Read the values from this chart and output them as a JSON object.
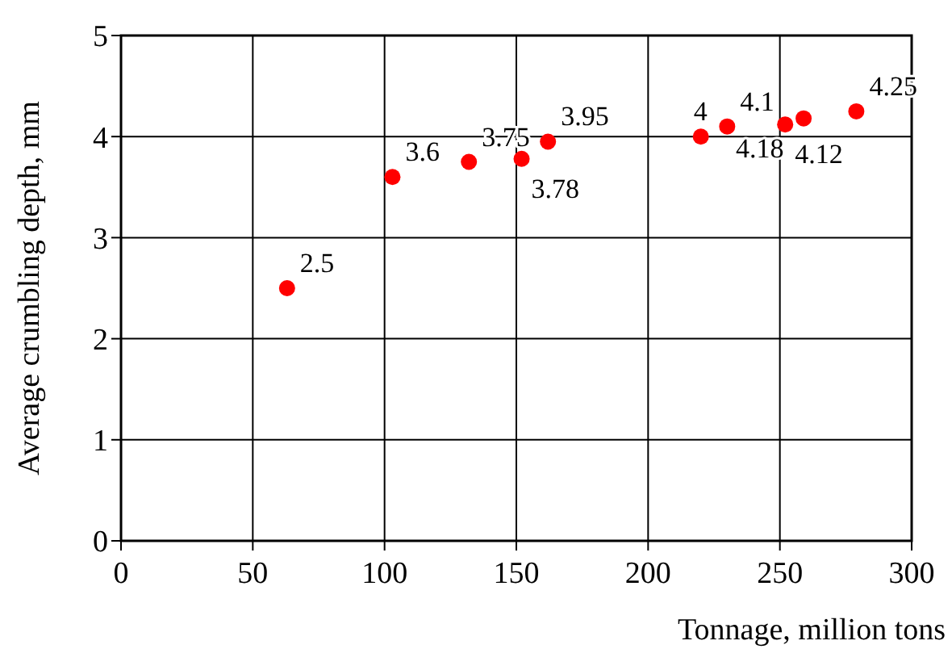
{
  "chart_data": {
    "type": "scatter",
    "xlabel": "Tonnage, million tons",
    "ylabel": "Average crumbling depth, mm",
    "x": [
      63,
      103,
      132,
      152,
      162,
      220,
      230,
      252,
      259,
      279
    ],
    "series": [
      {
        "color": "#ff0000",
        "values": [
          2.5,
          3.6,
          3.75,
          3.78,
          3.95,
          4,
          4.1,
          4.12,
          4.18,
          4.25
        ]
      }
    ],
    "xlim": [
      0,
      300
    ],
    "xticks": [
      0,
      50,
      100,
      150,
      200,
      250,
      300
    ],
    "ylim": [
      0,
      5
    ],
    "yticks": [
      0,
      1,
      2,
      3,
      4,
      5
    ],
    "grid": true,
    "marker": "circle",
    "data_labels": true
  }
}
